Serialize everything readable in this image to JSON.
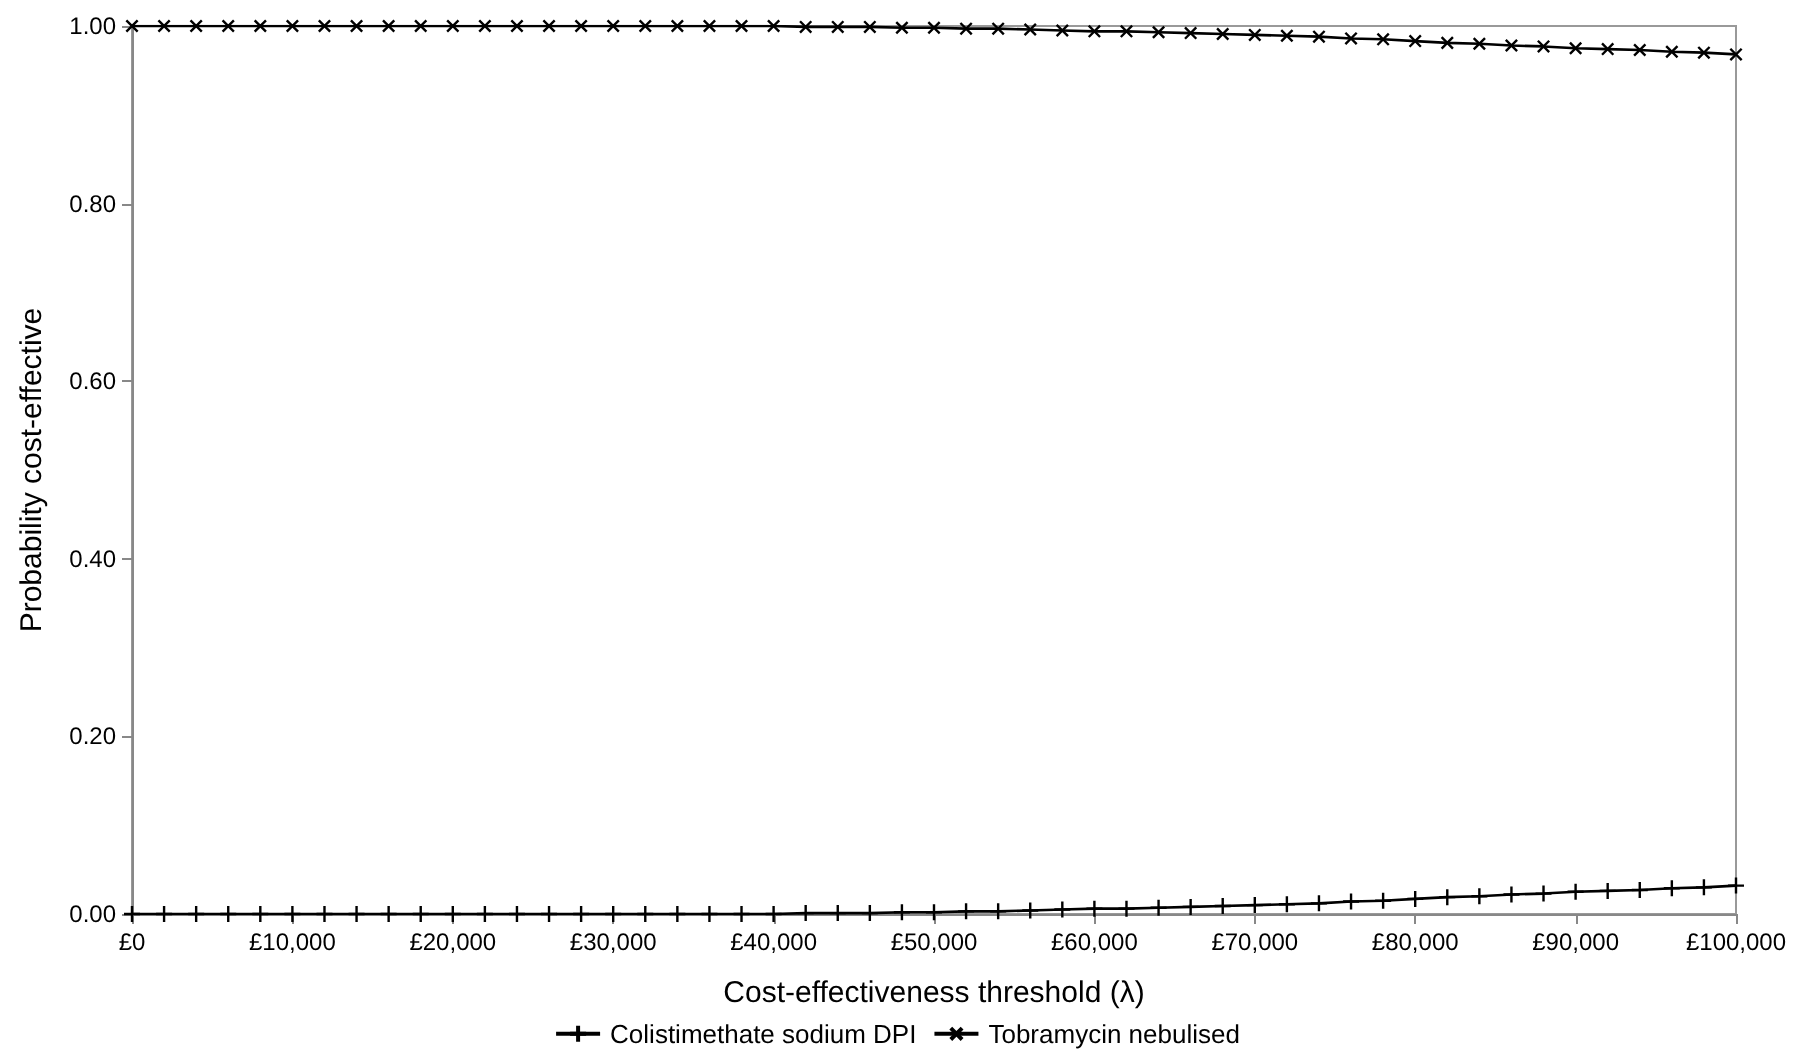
{
  "chart_data": {
    "type": "line",
    "xlabel": "Cost-effectiveness threshold (λ)",
    "ylabel": "Probability cost-effective",
    "x": [
      0,
      2000,
      4000,
      6000,
      8000,
      10000,
      12000,
      14000,
      16000,
      18000,
      20000,
      22000,
      24000,
      26000,
      28000,
      30000,
      32000,
      34000,
      36000,
      38000,
      40000,
      42000,
      44000,
      46000,
      48000,
      50000,
      52000,
      54000,
      56000,
      58000,
      60000,
      62000,
      64000,
      66000,
      68000,
      70000,
      72000,
      74000,
      76000,
      78000,
      80000,
      82000,
      84000,
      86000,
      88000,
      90000,
      92000,
      94000,
      96000,
      98000,
      100000
    ],
    "series": [
      {
        "name": "Colistimethate sodium DPI",
        "color": "#000000",
        "marker": "cross",
        "values": [
          0,
          0,
          0,
          0,
          0,
          0,
          0,
          0,
          0,
          0,
          0,
          0,
          0,
          0,
          0,
          0,
          0,
          0,
          0,
          0,
          0,
          0.001,
          0.001,
          0.001,
          0.002,
          0.002,
          0.003,
          0.003,
          0.004,
          0.005,
          0.006,
          0.006,
          0.007,
          0.008,
          0.009,
          0.01,
          0.011,
          0.012,
          0.014,
          0.015,
          0.017,
          0.019,
          0.02,
          0.022,
          0.023,
          0.025,
          0.026,
          0.027,
          0.029,
          0.03,
          0.032
        ]
      },
      {
        "name": "Tobramycin nebulised",
        "color": "#000000",
        "marker": "cross",
        "values": [
          1,
          1,
          1,
          1,
          1,
          1,
          1,
          1,
          1,
          1,
          1,
          1,
          1,
          1,
          1,
          1,
          1,
          1,
          1,
          1,
          1,
          0.999,
          0.999,
          0.999,
          0.998,
          0.998,
          0.997,
          0.997,
          0.996,
          0.995,
          0.994,
          0.994,
          0.993,
          0.992,
          0.991,
          0.99,
          0.989,
          0.988,
          0.986,
          0.985,
          0.983,
          0.981,
          0.98,
          0.978,
          0.977,
          0.975,
          0.974,
          0.973,
          0.971,
          0.97,
          0.968
        ]
      }
    ],
    "xlim": [
      0,
      100000
    ],
    "xticks": [
      {
        "value": 0,
        "label": "£0"
      },
      {
        "value": 10000,
        "label": "£10,000"
      },
      {
        "value": 20000,
        "label": "£20,000"
      },
      {
        "value": 30000,
        "label": "£30,000"
      },
      {
        "value": 40000,
        "label": "£40,000"
      },
      {
        "value": 50000,
        "label": "£50,000"
      },
      {
        "value": 60000,
        "label": "£60,000"
      },
      {
        "value": 70000,
        "label": "£70,000"
      },
      {
        "value": 80000,
        "label": "£80,000"
      },
      {
        "value": 90000,
        "label": "£90,000"
      },
      {
        "value": 100000,
        "label": "£100,000"
      }
    ],
    "ylim": [
      0,
      1
    ],
    "yticks": [
      {
        "value": 0,
        "label": "0.00"
      },
      {
        "value": 0.2,
        "label": "0.20"
      },
      {
        "value": 0.4,
        "label": "0.40"
      },
      {
        "value": 0.6,
        "label": "0.60"
      },
      {
        "value": 0.8,
        "label": "0.80"
      },
      {
        "value": 1,
        "label": "1.00"
      }
    ],
    "grid": false,
    "legend": "bottom",
    "line_style": "solid"
  }
}
